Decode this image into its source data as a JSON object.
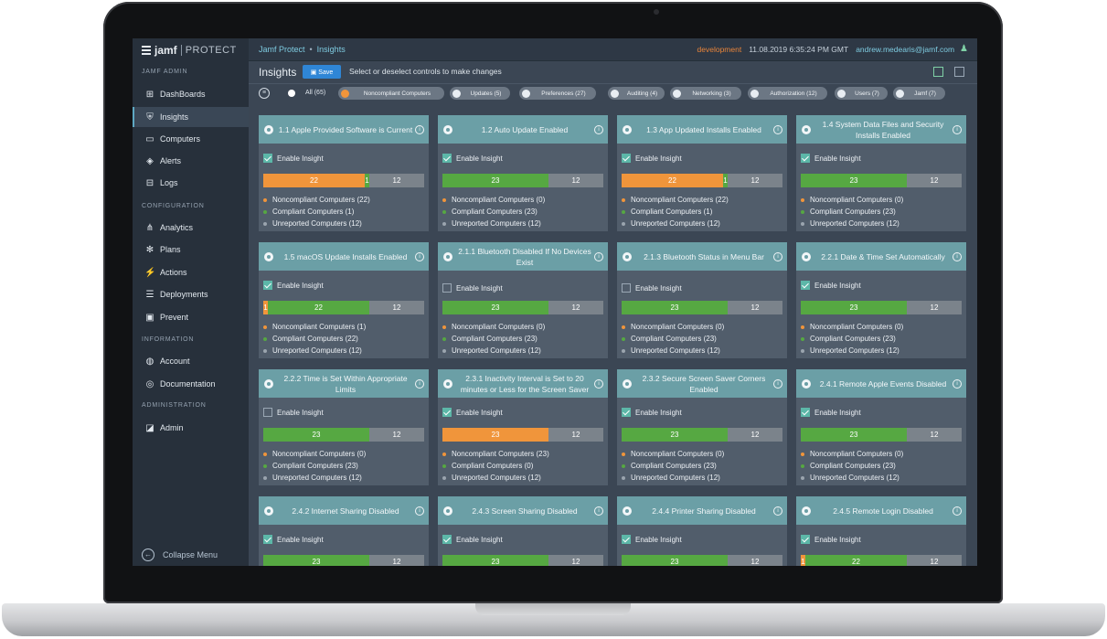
{
  "app": {
    "logo_brand": "jamf",
    "logo_product": "PROTECT",
    "breadcrumb": [
      "Jamf Protect",
      "Insights"
    ],
    "environment": "development",
    "datetime": "11.08.2019 6:35:24 PM GMT",
    "user_email": "andrew.medearis@jamf.com"
  },
  "sidebar": {
    "sections": [
      {
        "heading": "JAMF ADMIN",
        "items": [
          {
            "label": "DashBoards",
            "icon": "dashboard-icon",
            "active": false
          },
          {
            "label": "Insights",
            "icon": "shield-icon",
            "active": true
          },
          {
            "label": "Computers",
            "icon": "monitor-icon",
            "active": false
          },
          {
            "label": "Alerts",
            "icon": "alert-icon",
            "active": false
          },
          {
            "label": "Logs",
            "icon": "inbox-icon",
            "active": false
          }
        ]
      },
      {
        "heading": "CONFIGURATION",
        "items": [
          {
            "label": "Analytics",
            "icon": "network-icon",
            "active": false
          },
          {
            "label": "Plans",
            "icon": "snowflake-icon",
            "active": false
          },
          {
            "label": "Actions",
            "icon": "bolt-icon",
            "active": false
          },
          {
            "label": "Deployments",
            "icon": "stack-icon",
            "active": false
          },
          {
            "label": "Prevent",
            "icon": "prevent-icon",
            "active": false
          }
        ]
      },
      {
        "heading": "INFORMATION",
        "items": [
          {
            "label": "Account",
            "icon": "globe-icon",
            "active": false
          },
          {
            "label": "Documentation",
            "icon": "lifebuoy-icon",
            "active": false
          }
        ]
      },
      {
        "heading": "ADMINISTRATION",
        "items": [
          {
            "label": "Admin",
            "icon": "admin-icon",
            "active": false
          }
        ]
      }
    ],
    "collapse_label": "Collapse Menu"
  },
  "page": {
    "title": "Insights",
    "save_label": "Save",
    "hint": "Select or deselect controls to make changes"
  },
  "filters": {
    "all_label": "All (65)",
    "chips": [
      {
        "label": "Noncompliant Computers",
        "selected": true
      },
      {
        "label": "Updates (5)",
        "selected": false
      },
      {
        "label": "Preferences (27)",
        "selected": false
      },
      {
        "label": "Auditing (4)",
        "selected": false
      },
      {
        "label": "Networking (3)",
        "selected": false
      },
      {
        "label": "Authorization (12)",
        "selected": false
      },
      {
        "label": "Users (7)",
        "selected": false
      },
      {
        "label": "Jamf (7)",
        "selected": false
      }
    ]
  },
  "labels": {
    "enable": "Enable Insight",
    "noncompliant": "Noncompliant Computers",
    "compliant": "Compliant Computers",
    "unreported": "Unreported Computers"
  },
  "colors": {
    "noncompliant": "#f0953b",
    "compliant": "#56a842",
    "unreported": "#7b838b",
    "card_header": "#6b9fa6"
  },
  "cards": [
    {
      "title": "1.1 Apple Provided Software is Current",
      "enabled": true,
      "noncompliant": 22,
      "compliant": 1,
      "unreported": 12
    },
    {
      "title": "1.2 Auto Update Enabled",
      "enabled": true,
      "noncompliant": 0,
      "compliant": 23,
      "unreported": 12
    },
    {
      "title": "1.3 App Updated Installs Enabled",
      "enabled": true,
      "noncompliant": 22,
      "compliant": 1,
      "unreported": 12
    },
    {
      "title": "1.4 System Data Files and Security Installs Enabled",
      "enabled": true,
      "noncompliant": 0,
      "compliant": 23,
      "unreported": 12
    },
    {
      "title": "1.5 macOS Update Installs Enabled",
      "enabled": true,
      "noncompliant": 1,
      "compliant": 22,
      "unreported": 12
    },
    {
      "title": "2.1.1 Bluetooth Disabled If No Devices Exist",
      "enabled": false,
      "noncompliant": 0,
      "compliant": 23,
      "unreported": 12
    },
    {
      "title": "2.1.3 Bluetooth Status in Menu Bar",
      "enabled": false,
      "noncompliant": 0,
      "compliant": 23,
      "unreported": 12
    },
    {
      "title": "2.2.1 Date & Time Set Automatically",
      "enabled": true,
      "noncompliant": 0,
      "compliant": 23,
      "unreported": 12
    },
    {
      "title": "2.2.2 Time is Set Within Appropriate Limits",
      "enabled": false,
      "noncompliant": 0,
      "compliant": 23,
      "unreported": 12
    },
    {
      "title": "2.3.1 Inactivity Interval is Set to 20 minutes or Less for the Screen Saver",
      "enabled": true,
      "noncompliant": 23,
      "compliant": 0,
      "unreported": 12
    },
    {
      "title": "2.3.2 Secure Screen Saver Corners Enabled",
      "enabled": true,
      "noncompliant": 0,
      "compliant": 23,
      "unreported": 12
    },
    {
      "title": "2.4.1 Remote Apple Events Disabled",
      "enabled": true,
      "noncompliant": 0,
      "compliant": 23,
      "unreported": 12
    },
    {
      "title": "2.4.2 Internet Sharing Disabled",
      "enabled": true,
      "noncompliant": 0,
      "compliant": 23,
      "unreported": 12
    },
    {
      "title": "2.4.3 Screen Sharing Disabled",
      "enabled": true,
      "noncompliant": 0,
      "compliant": 23,
      "unreported": 12
    },
    {
      "title": "2.4.4 Printer Sharing Disabled",
      "enabled": true,
      "noncompliant": 0,
      "compliant": 23,
      "unreported": 12
    },
    {
      "title": "2.4.5 Remote Login Disabled",
      "enabled": true,
      "noncompliant": 1,
      "compliant": 22,
      "unreported": 12
    }
  ]
}
